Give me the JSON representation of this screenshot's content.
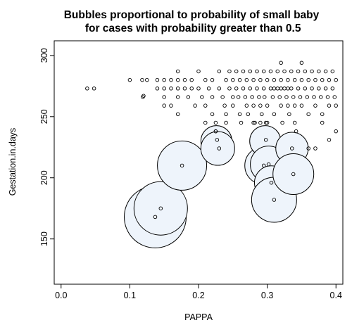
{
  "chart_data": {
    "type": "scatter",
    "title_lines": [
      "Bubbles proportional to probability of small baby",
      " for cases with probability greater than 0.5"
    ],
    "xlabel": "PAPPA",
    "ylabel": "Gestation.in.days",
    "xlim": [
      -0.01,
      0.41
    ],
    "ylim": [
      113,
      312
    ],
    "xticks": [
      0.0,
      0.1,
      0.2,
      0.3,
      0.4
    ],
    "xtick_labels": [
      "0.0",
      "0.1",
      "0.2",
      "0.3",
      "0.4"
    ],
    "yticks": [
      150,
      200,
      250,
      300
    ],
    "yticks_labels": [
      "150",
      "200",
      "250",
      "300"
    ],
    "grid": false,
    "bubble_fill": "#eef4fb",
    "bubble_stroke": "#000000",
    "bubbles": [
      {
        "x": 0.137,
        "y": 168,
        "r_px": 44
      },
      {
        "x": 0.145,
        "y": 175,
        "r_px": 38
      },
      {
        "x": 0.176,
        "y": 210,
        "r_px": 35
      },
      {
        "x": 0.226,
        "y": 230,
        "r_px": 22
      },
      {
        "x": 0.228,
        "y": 224,
        "r_px": 24
      },
      {
        "x": 0.295,
        "y": 210,
        "r_px": 27
      },
      {
        "x": 0.297,
        "y": 230,
        "r_px": 22
      },
      {
        "x": 0.302,
        "y": 211,
        "r_px": 26
      },
      {
        "x": 0.306,
        "y": 196,
        "r_px": 24
      },
      {
        "x": 0.31,
        "y": 182,
        "r_px": 32
      },
      {
        "x": 0.336,
        "y": 224,
        "r_px": 23
      },
      {
        "x": 0.338,
        "y": 203,
        "r_px": 29
      }
    ],
    "points": [
      [
        0.038,
        273
      ],
      [
        0.048,
        273
      ],
      [
        0.1,
        280
      ],
      [
        0.118,
        280
      ],
      [
        0.125,
        280
      ],
      [
        0.12,
        267
      ],
      [
        0.119,
        266
      ],
      [
        0.14,
        280
      ],
      [
        0.14,
        273
      ],
      [
        0.15,
        280
      ],
      [
        0.15,
        273
      ],
      [
        0.15,
        266
      ],
      [
        0.15,
        259
      ],
      [
        0.16,
        280
      ],
      [
        0.16,
        273
      ],
      [
        0.16,
        259
      ],
      [
        0.17,
        287
      ],
      [
        0.17,
        280
      ],
      [
        0.17,
        273
      ],
      [
        0.17,
        266
      ],
      [
        0.17,
        252
      ],
      [
        0.18,
        280
      ],
      [
        0.18,
        273
      ],
      [
        0.185,
        266
      ],
      [
        0.19,
        280
      ],
      [
        0.19,
        273
      ],
      [
        0.195,
        259
      ],
      [
        0.2,
        287
      ],
      [
        0.2,
        273
      ],
      [
        0.205,
        266
      ],
      [
        0.21,
        280
      ],
      [
        0.21,
        259
      ],
      [
        0.21,
        245
      ],
      [
        0.215,
        273
      ],
      [
        0.22,
        280
      ],
      [
        0.22,
        266
      ],
      [
        0.22,
        252
      ],
      [
        0.225,
        245
      ],
      [
        0.225,
        238
      ],
      [
        0.23,
        287
      ],
      [
        0.23,
        273
      ],
      [
        0.235,
        266
      ],
      [
        0.238,
        259
      ],
      [
        0.24,
        280
      ],
      [
        0.24,
        252
      ],
      [
        0.24,
        245
      ],
      [
        0.245,
        287
      ],
      [
        0.245,
        273
      ],
      [
        0.25,
        266
      ],
      [
        0.25,
        259
      ],
      [
        0.25,
        280
      ],
      [
        0.255,
        287
      ],
      [
        0.255,
        273
      ],
      [
        0.258,
        266
      ],
      [
        0.26,
        280
      ],
      [
        0.26,
        252
      ],
      [
        0.262,
        245
      ],
      [
        0.265,
        287
      ],
      [
        0.265,
        273
      ],
      [
        0.268,
        266
      ],
      [
        0.27,
        280
      ],
      [
        0.27,
        259
      ],
      [
        0.272,
        252
      ],
      [
        0.275,
        287
      ],
      [
        0.275,
        273
      ],
      [
        0.278,
        266
      ],
      [
        0.28,
        280
      ],
      [
        0.28,
        259
      ],
      [
        0.282,
        245
      ],
      [
        0.285,
        287
      ],
      [
        0.285,
        273
      ],
      [
        0.288,
        266
      ],
      [
        0.29,
        280
      ],
      [
        0.29,
        259
      ],
      [
        0.292,
        252
      ],
      [
        0.295,
        287
      ],
      [
        0.295,
        273
      ],
      [
        0.296,
        266
      ],
      [
        0.298,
        245
      ],
      [
        0.3,
        280
      ],
      [
        0.3,
        259
      ],
      [
        0.305,
        287
      ],
      [
        0.305,
        273
      ],
      [
        0.308,
        266
      ],
      [
        0.31,
        280
      ],
      [
        0.31,
        252
      ],
      [
        0.315,
        287
      ],
      [
        0.315,
        273
      ],
      [
        0.318,
        266
      ],
      [
        0.32,
        294
      ],
      [
        0.32,
        280
      ],
      [
        0.32,
        259
      ],
      [
        0.322,
        245
      ],
      [
        0.325,
        287
      ],
      [
        0.325,
        273
      ],
      [
        0.328,
        266
      ],
      [
        0.33,
        280
      ],
      [
        0.33,
        259
      ],
      [
        0.332,
        252
      ],
      [
        0.335,
        287
      ],
      [
        0.335,
        273
      ],
      [
        0.338,
        266
      ],
      [
        0.34,
        280
      ],
      [
        0.34,
        259
      ],
      [
        0.342,
        238
      ],
      [
        0.345,
        287
      ],
      [
        0.345,
        273
      ],
      [
        0.348,
        266
      ],
      [
        0.35,
        294
      ],
      [
        0.35,
        280
      ],
      [
        0.35,
        259
      ],
      [
        0.355,
        287
      ],
      [
        0.355,
        273
      ],
      [
        0.358,
        266
      ],
      [
        0.36,
        280
      ],
      [
        0.36,
        252
      ],
      [
        0.36,
        224
      ],
      [
        0.365,
        287
      ],
      [
        0.365,
        273
      ],
      [
        0.368,
        266
      ],
      [
        0.37,
        280
      ],
      [
        0.37,
        259
      ],
      [
        0.37,
        224
      ],
      [
        0.375,
        287
      ],
      [
        0.375,
        273
      ],
      [
        0.378,
        266
      ],
      [
        0.38,
        280
      ],
      [
        0.38,
        252
      ],
      [
        0.38,
        245
      ],
      [
        0.385,
        287
      ],
      [
        0.385,
        273
      ],
      [
        0.388,
        266
      ],
      [
        0.39,
        280
      ],
      [
        0.39,
        259
      ],
      [
        0.39,
        231
      ],
      [
        0.395,
        287
      ],
      [
        0.395,
        273
      ],
      [
        0.398,
        266
      ],
      [
        0.4,
        280
      ],
      [
        0.4,
        259
      ],
      [
        0.4,
        238
      ],
      [
        0.31,
        273
      ],
      [
        0.32,
        273
      ],
      [
        0.33,
        273
      ],
      [
        0.34,
        245
      ],
      [
        0.3,
        245
      ],
      [
        0.29,
        245
      ],
      [
        0.28,
        245
      ],
      [
        0.23,
        224
      ],
      [
        0.227,
        231
      ],
      [
        0.225,
        238
      ],
      [
        0.298,
        231
      ],
      [
        0.306,
        196
      ],
      [
        0.31,
        182
      ],
      [
        0.336,
        224
      ],
      [
        0.338,
        203
      ],
      [
        0.295,
        210
      ],
      [
        0.302,
        211
      ],
      [
        0.176,
        210
      ],
      [
        0.145,
        175
      ],
      [
        0.137,
        168
      ]
    ]
  }
}
